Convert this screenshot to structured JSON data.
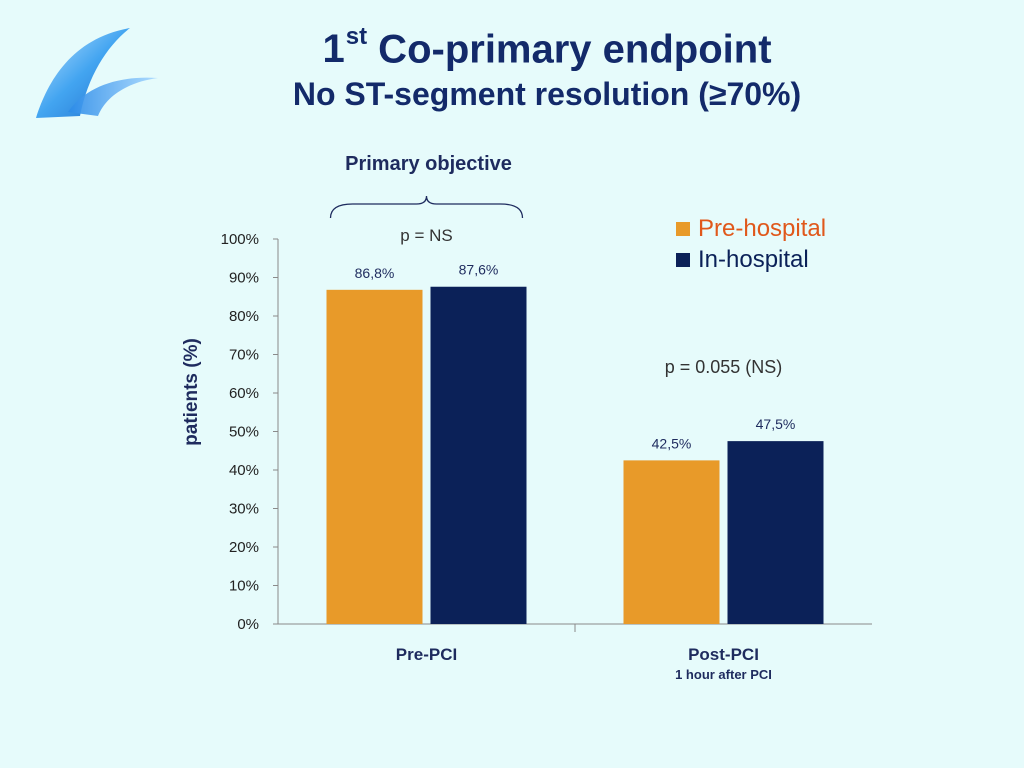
{
  "slide": {
    "title_number": "1",
    "title_superscript": "st",
    "title_rest": " Co-primary endpoint",
    "subtitle": "No ST-segment resolution (≥70%)",
    "objective_label": "Primary objective",
    "logo_icon": "wave-logo-icon"
  },
  "colors": {
    "background": "#E6FBFB",
    "title": "#132A6A",
    "pre_hospital": "#E89A29",
    "in_hospital": "#0B2158",
    "legend_pre_text": "#E0581B"
  },
  "chart_data": {
    "type": "bar",
    "ylabel": "patients (%)",
    "ylim": [
      0,
      100
    ],
    "yticks": [
      "0%",
      "10%",
      "20%",
      "30%",
      "40%",
      "50%",
      "60%",
      "70%",
      "80%",
      "90%",
      "100%"
    ],
    "categories": [
      "Pre-PCI",
      "Post-PCI"
    ],
    "category_sublabels": [
      "",
      "1 hour after PCI"
    ],
    "series": [
      {
        "name": "Pre-hospital",
        "values": [
          86.8,
          42.5
        ],
        "labels": [
          "86,8%",
          "42,5%"
        ]
      },
      {
        "name": "In-hospital",
        "values": [
          87.6,
          47.5
        ],
        "labels": [
          "87,6%",
          "47,5%"
        ]
      }
    ],
    "annotations": [
      "p = NS",
      "p = 0.055 (NS)"
    ],
    "legend_position": "top-right",
    "grid": false
  }
}
